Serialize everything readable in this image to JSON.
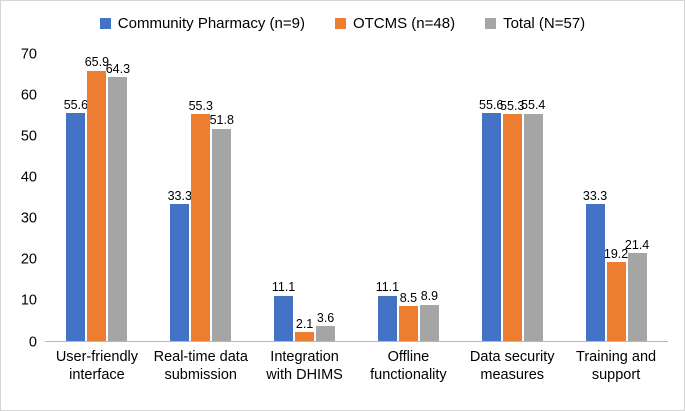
{
  "chart_data": {
    "type": "bar",
    "title": "",
    "categories": [
      "User-friendly interface",
      "Real-time data submission",
      "Integration with DHIMS",
      "Offline functionality",
      "Data security measures",
      "Training and support"
    ],
    "series": [
      {
        "name": "Community Pharmacy (n=9)",
        "color": "#4472C4",
        "values": [
          55.6,
          33.3,
          11.1,
          11.1,
          55.6,
          33.3
        ]
      },
      {
        "name": "OTCMS (n=48)",
        "color": "#ED7D31",
        "values": [
          65.9,
          55.3,
          2.1,
          8.5,
          55.3,
          19.2
        ]
      },
      {
        "name": "Total (N=57)",
        "color": "#A5A5A5",
        "values": [
          64.3,
          51.8,
          3.6,
          8.9,
          55.4,
          21.4
        ]
      }
    ],
    "ylim": [
      0,
      70
    ],
    "ytick_step": 10,
    "grid": false,
    "legend_position": "top",
    "data_labels": true,
    "label_decimals": 1
  }
}
